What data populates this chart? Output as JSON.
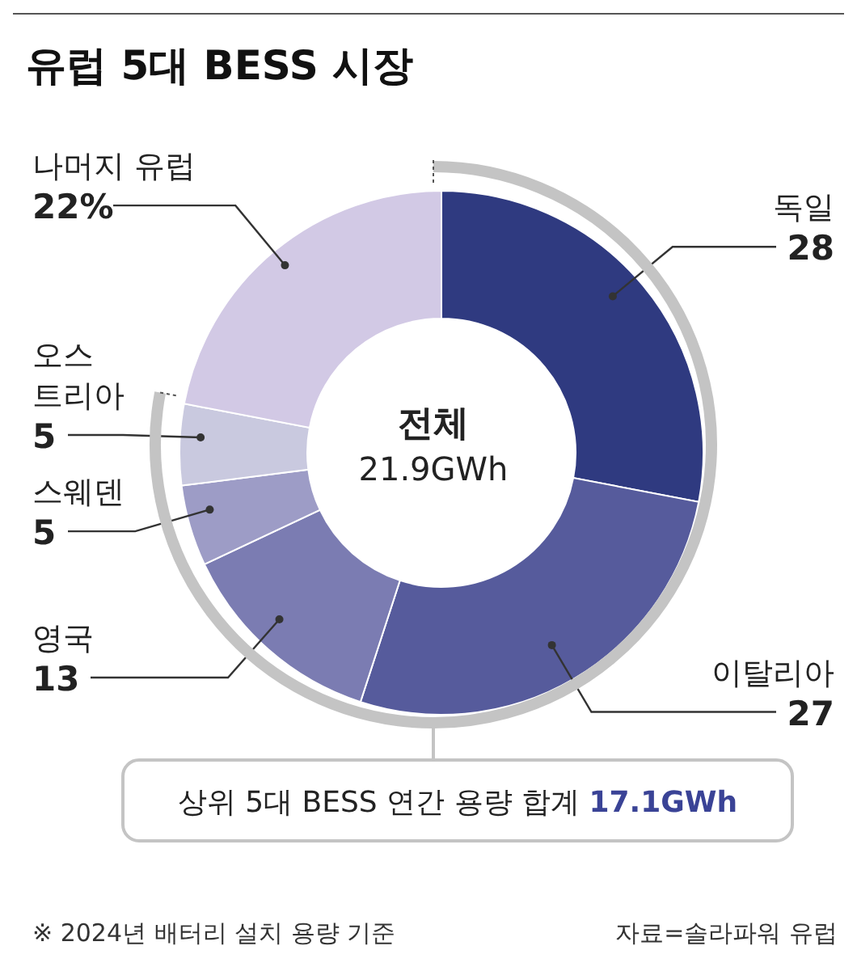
{
  "chart_data": {
    "type": "donut",
    "title": "유럽 5대 BESS 시장",
    "categories": [
      "독일",
      "이탈리아",
      "영국",
      "스웨덴",
      "오스트리아",
      "나머지 유럽"
    ],
    "values": [
      28,
      27,
      13,
      5,
      5,
      22
    ],
    "value_labels": [
      "28",
      "27",
      "13",
      "5",
      "5",
      "22%"
    ],
    "colors": [
      "#2f3a80",
      "#565b9c",
      "#7b7cb2",
      "#9d9cc6",
      "#c9c9df",
      "#d2c9e5"
    ],
    "legend": false,
    "annotations": [
      "전체",
      "21.9GWh",
      "상위 5대 BESS 연간 용량 합계 17.1GWh",
      "※ 2024년 배터리 설치 용량 기준",
      "자료=솔라파워 유럽"
    ]
  }
}
